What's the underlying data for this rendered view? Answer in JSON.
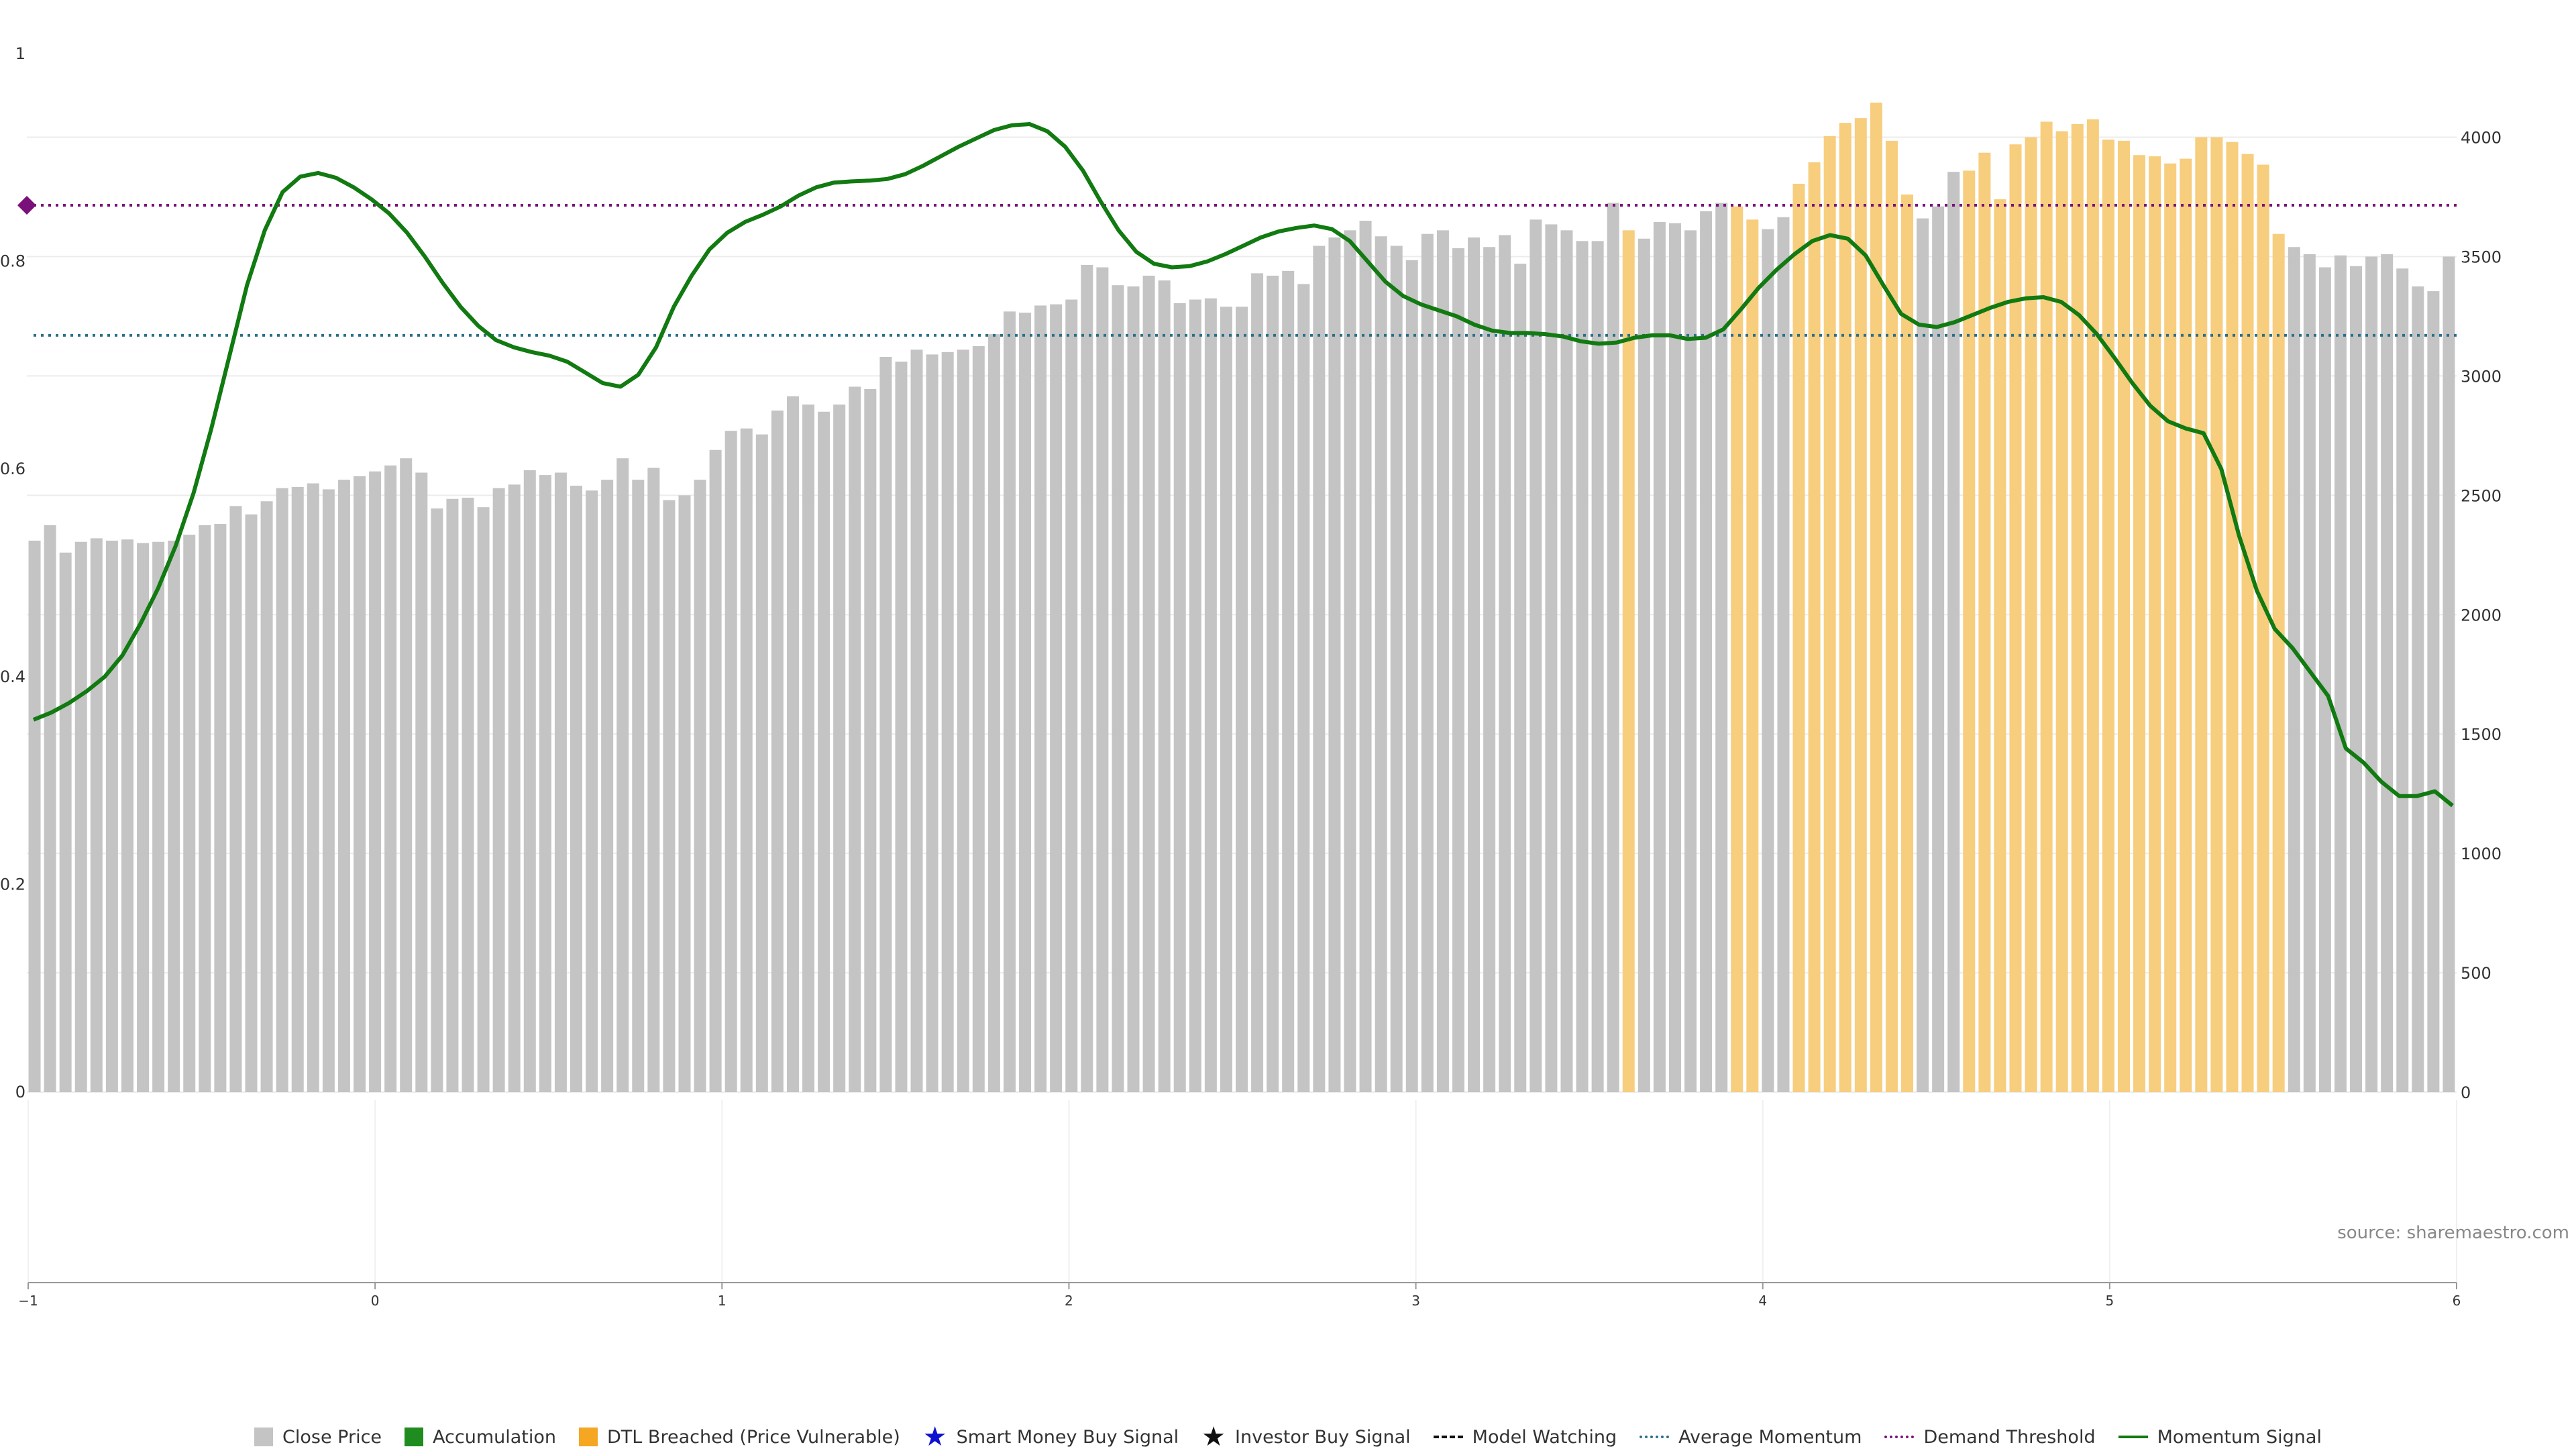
{
  "chart_data": {
    "type": "bar+line",
    "source_label": "source: sharemaestro.com",
    "left_axis": {
      "ylim": [
        0,
        1
      ],
      "ticks": [
        "0",
        "0.2",
        "0.4",
        "0.6",
        "0.8",
        "1"
      ]
    },
    "right_axis": {
      "ylim": [
        0,
        4350
      ],
      "ticks": [
        "0",
        "500",
        "1000",
        "1500",
        "2000",
        "2500",
        "3000",
        "3500",
        "4000"
      ]
    },
    "x_axis": {
      "xlim": [
        -1,
        6
      ],
      "ticks": [
        "−1",
        "0",
        "1",
        "2",
        "3",
        "4",
        "5",
        "6"
      ]
    },
    "colors": {
      "close_price": "#c4c4c4",
      "accumulation": "#1e8c1e",
      "dtl_breached": "#f7cd7e",
      "dtl_legend": "#f5a623",
      "smart_money": "#1010d0",
      "investor": "#111111",
      "average_momentum": "#2a6f8a",
      "demand_threshold": "#7a117a",
      "momentum": "#117a11"
    },
    "close_price_bars": [
      2310,
      2375,
      2260,
      2305,
      2320,
      2310,
      2315,
      2300,
      2305,
      2310,
      2335,
      2375,
      2380,
      2455,
      2420,
      2475,
      2530,
      2535,
      2550,
      2525,
      2565,
      2580,
      2600,
      2625,
      2655,
      2595,
      2445,
      2485,
      2490,
      2450,
      2530,
      2545,
      2605,
      2585,
      2595,
      2540,
      2520,
      2565,
      2655,
      2565,
      2615,
      2480,
      2500,
      2565,
      2690,
      2770,
      2780,
      2755,
      2855,
      2915,
      2880,
      2850,
      2880,
      2955,
      2945,
      3080,
      3060,
      3110,
      3090,
      3100,
      3110,
      3125,
      3175,
      3270,
      3265,
      3295,
      3300,
      3320,
      3465,
      3455,
      3380,
      3375,
      3420,
      3400,
      3305,
      3320,
      3325,
      3290,
      3290,
      3430,
      3420,
      3440,
      3385,
      3545,
      3580,
      3610,
      3650,
      3585,
      3545,
      3485,
      3595,
      3610,
      3535,
      3580,
      3540,
      3590,
      3470,
      3655,
      3635,
      3610,
      3565,
      3565,
      3725,
      3610,
      3575,
      3645,
      3640,
      3610,
      3690,
      3725,
      3710,
      3655,
      3615,
      3665,
      3805,
      3895,
      4005,
      4060,
      4080,
      4145,
      3985,
      3760,
      3660,
      3710,
      3855,
      3860,
      3935,
      3740,
      3970,
      4000,
      4065,
      4025,
      4055,
      4075,
      3990,
      3985,
      3925,
      3920,
      3890,
      3910,
      4000,
      4000,
      3980,
      3930,
      3885,
      3595,
      3540,
      3510,
      3455,
      3505,
      3460,
      3500,
      3510,
      3450,
      3375,
      3355,
      3500
    ],
    "dtl_breached_bar_ranges": [
      [
        103,
        103
      ],
      [
        110,
        111
      ],
      [
        114,
        121
      ],
      [
        125,
        145
      ]
    ],
    "momentum_signal": [
      [
        0,
        1560
      ],
      [
        2,
        1590
      ],
      [
        4,
        1630
      ],
      [
        6,
        1680
      ],
      [
        8,
        1740
      ],
      [
        10,
        1830
      ],
      [
        12,
        1960
      ],
      [
        14,
        2110
      ],
      [
        16,
        2290
      ],
      [
        18,
        2510
      ],
      [
        20,
        2780
      ],
      [
        22,
        3080
      ],
      [
        24,
        3380
      ],
      [
        26,
        3610
      ],
      [
        28,
        3770
      ],
      [
        30,
        3835
      ],
      [
        32,
        3850
      ],
      [
        34,
        3830
      ],
      [
        36,
        3790
      ],
      [
        38,
        3740
      ],
      [
        40,
        3680
      ],
      [
        42,
        3600
      ],
      [
        44,
        3500
      ],
      [
        46,
        3390
      ],
      [
        48,
        3290
      ],
      [
        50,
        3210
      ],
      [
        52,
        3150
      ],
      [
        54,
        3120
      ],
      [
        56,
        3100
      ],
      [
        58,
        3085
      ],
      [
        60,
        3060
      ],
      [
        62,
        3015
      ],
      [
        64,
        2970
      ],
      [
        66,
        2955
      ],
      [
        68,
        3005
      ],
      [
        70,
        3120
      ],
      [
        72,
        3290
      ],
      [
        74,
        3420
      ],
      [
        76,
        3530
      ],
      [
        78,
        3600
      ],
      [
        80,
        3645
      ],
      [
        82,
        3675
      ],
      [
        84,
        3710
      ],
      [
        86,
        3755
      ],
      [
        88,
        3790
      ],
      [
        90,
        3810
      ],
      [
        92,
        3815
      ],
      [
        94,
        3818
      ],
      [
        96,
        3825
      ],
      [
        98,
        3845
      ],
      [
        100,
        3880
      ],
      [
        102,
        3920
      ],
      [
        104,
        3960
      ],
      [
        106,
        3995
      ],
      [
        108,
        4030
      ],
      [
        110,
        4050
      ],
      [
        112,
        4055
      ],
      [
        114,
        4025
      ],
      [
        116,
        3960
      ],
      [
        118,
        3860
      ],
      [
        120,
        3730
      ],
      [
        122,
        3610
      ],
      [
        124,
        3520
      ],
      [
        126,
        3470
      ],
      [
        128,
        3455
      ],
      [
        130,
        3460
      ],
      [
        132,
        3480
      ],
      [
        134,
        3510
      ],
      [
        136,
        3545
      ],
      [
        138,
        3580
      ],
      [
        140,
        3605
      ],
      [
        142,
        3620
      ],
      [
        144,
        3630
      ],
      [
        146,
        3615
      ],
      [
        148,
        3565
      ],
      [
        150,
        3480
      ],
      [
        152,
        3395
      ],
      [
        154,
        3335
      ],
      [
        156,
        3300
      ],
      [
        158,
        3275
      ],
      [
        160,
        3250
      ],
      [
        162,
        3215
      ],
      [
        164,
        3190
      ],
      [
        166,
        3180
      ],
      [
        168,
        3180
      ],
      [
        170,
        3175
      ],
      [
        172,
        3165
      ],
      [
        174,
        3145
      ],
      [
        176,
        3135
      ],
      [
        178,
        3140
      ],
      [
        180,
        3160
      ],
      [
        182,
        3170
      ],
      [
        184,
        3170
      ],
      [
        186,
        3155
      ],
      [
        188,
        3160
      ],
      [
        190,
        3195
      ],
      [
        192,
        3280
      ],
      [
        194,
        3370
      ],
      [
        196,
        3445
      ],
      [
        198,
        3510
      ],
      [
        200,
        3565
      ],
      [
        202,
        3590
      ],
      [
        204,
        3575
      ],
      [
        206,
        3505
      ],
      [
        208,
        3380
      ],
      [
        210,
        3260
      ],
      [
        212,
        3215
      ],
      [
        214,
        3205
      ],
      [
        216,
        3225
      ],
      [
        218,
        3255
      ],
      [
        220,
        3285
      ],
      [
        222,
        3310
      ],
      [
        224,
        3325
      ],
      [
        226,
        3330
      ],
      [
        228,
        3310
      ],
      [
        230,
        3255
      ],
      [
        232,
        3175
      ],
      [
        234,
        3075
      ],
      [
        236,
        2970
      ],
      [
        238,
        2875
      ],
      [
        240,
        2810
      ],
      [
        242,
        2780
      ],
      [
        244,
        2760
      ],
      [
        246,
        2610
      ],
      [
        248,
        2330
      ],
      [
        250,
        2100
      ],
      [
        252,
        1940
      ],
      [
        254,
        1860
      ],
      [
        256,
        1760
      ],
      [
        258,
        1660
      ],
      [
        260,
        1440
      ],
      [
        262,
        1380
      ],
      [
        264,
        1300
      ],
      [
        266,
        1240
      ],
      [
        268,
        1240
      ],
      [
        270,
        1260
      ],
      [
        272,
        1200
      ]
    ],
    "average_momentum_value": 3170,
    "demand_threshold_value": 3715,
    "legend": [
      {
        "label": "Close Price",
        "icon": "square-swatch",
        "color": "#c4c4c4"
      },
      {
        "label": "Accumulation",
        "icon": "square-swatch",
        "color": "#1e8c1e"
      },
      {
        "label": "DTL Breached (Price Vulnerable)",
        "icon": "square-swatch",
        "color": "#f5a623"
      },
      {
        "label": "Smart Money Buy Signal",
        "icon": "star-icon",
        "color": "#1010d0"
      },
      {
        "label": "Investor Buy Signal",
        "icon": "star-icon",
        "color": "#111111"
      },
      {
        "label": "Model Watching",
        "icon": "dashed-line",
        "color": "#111111"
      },
      {
        "label": "Average Momentum",
        "icon": "dotted-line",
        "color": "#2a6f8a"
      },
      {
        "label": "Demand Threshold",
        "icon": "dotted-line",
        "color": "#7a117a"
      },
      {
        "label": "Momentum Signal",
        "icon": "solid-line",
        "color": "#117a11"
      }
    ]
  }
}
